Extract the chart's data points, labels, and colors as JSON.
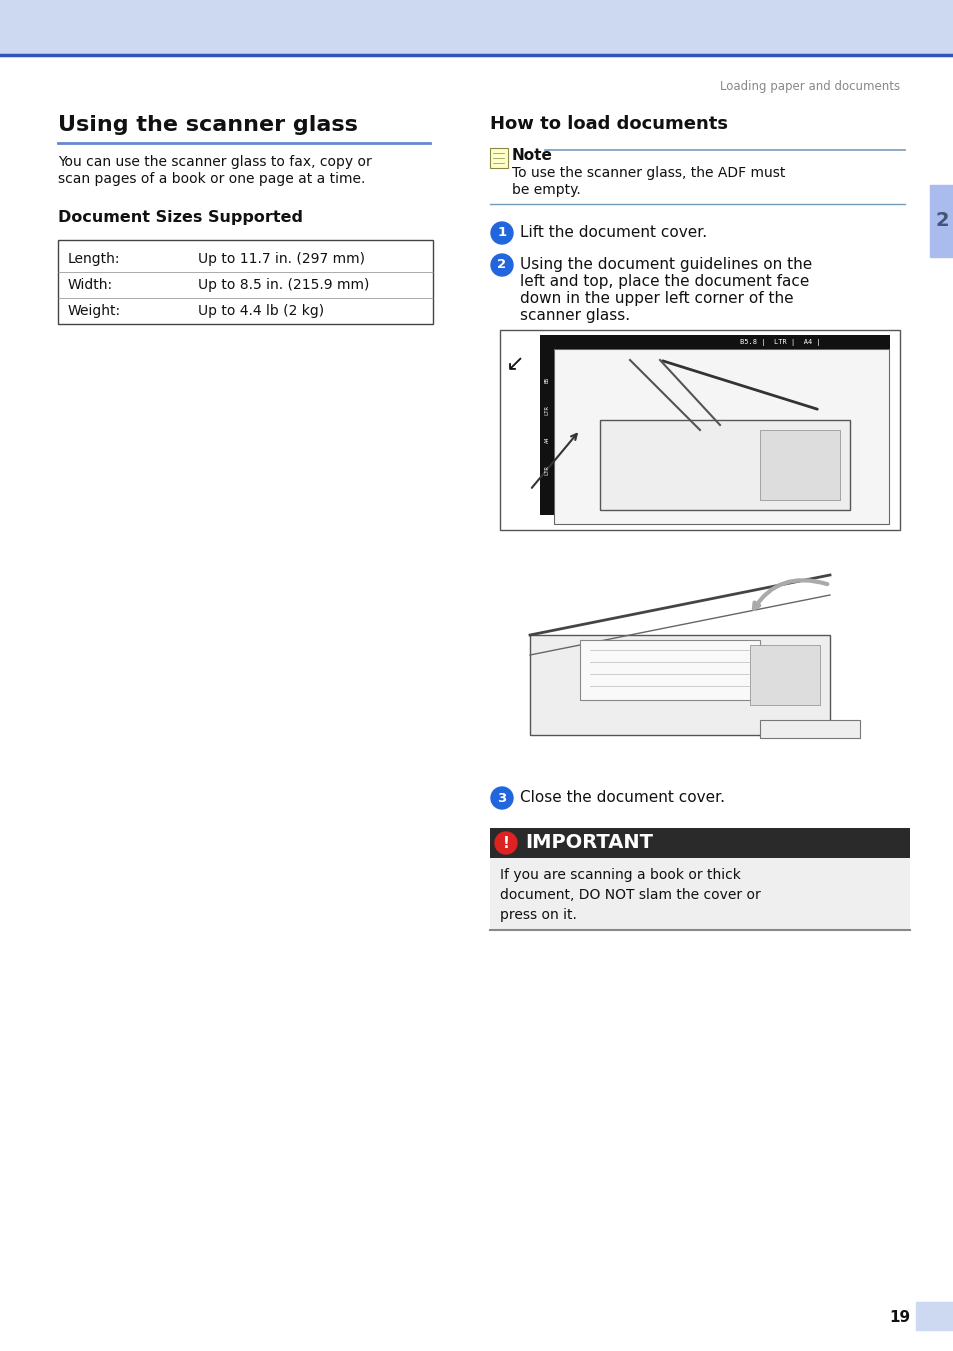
{
  "page_bg": "#ffffff",
  "header_bg": "#ccd9f0",
  "header_line_color": "#3355bb",
  "header_text": "Loading paper and documents",
  "header_text_color": "#888888",
  "page_number": "19",
  "page_tab_bg": "#ccd9f0",
  "chapter_num": "2",
  "chapter_tab_bg": "#aabbee",
  "chapter_tab_text": "#ffffff",
  "left_title": "Using the scanner glass",
  "left_title_underline": "#6688cc",
  "left_body_line1": "You can use the scanner glass to fax, copy or",
  "left_body_line2": "scan pages of a book or one page at a time.",
  "doc_sizes_title": "Document Sizes Supported",
  "table_rows": [
    [
      "Length:",
      "Up to 11.7 in. (297 mm)"
    ],
    [
      "Width:",
      "Up to 8.5 in. (215.9 mm)"
    ],
    [
      "Weight:",
      "Up to 4.4 lb (2 kg)"
    ]
  ],
  "right_title": "How to load documents",
  "note_text_line1": "To use the scanner glass, the ADF must",
  "note_text_line2": "be empty.",
  "step1_text": "Lift the document cover.",
  "step2_line1": "Using the document guidelines on the",
  "step2_line2": "left and top, place the document face",
  "step2_line3": "down in the upper left corner of the",
  "step2_line4": "scanner glass.",
  "step3_text": "Close the document cover.",
  "important_bg": "#2a2a2a",
  "important_text_color": "#ffffff",
  "important_title": "IMPORTANT",
  "important_body_line1": "If you are scanning a book or thick",
  "important_body_line2": "document, DO NOT slam the cover or",
  "important_body_line3": "press on it.",
  "important_icon_color": "#dd2222",
  "step_circle_color": "#2266dd",
  "body_text_color": "#111111",
  "note_line_color": "#7799bb",
  "bottom_bar_color": "#888888"
}
